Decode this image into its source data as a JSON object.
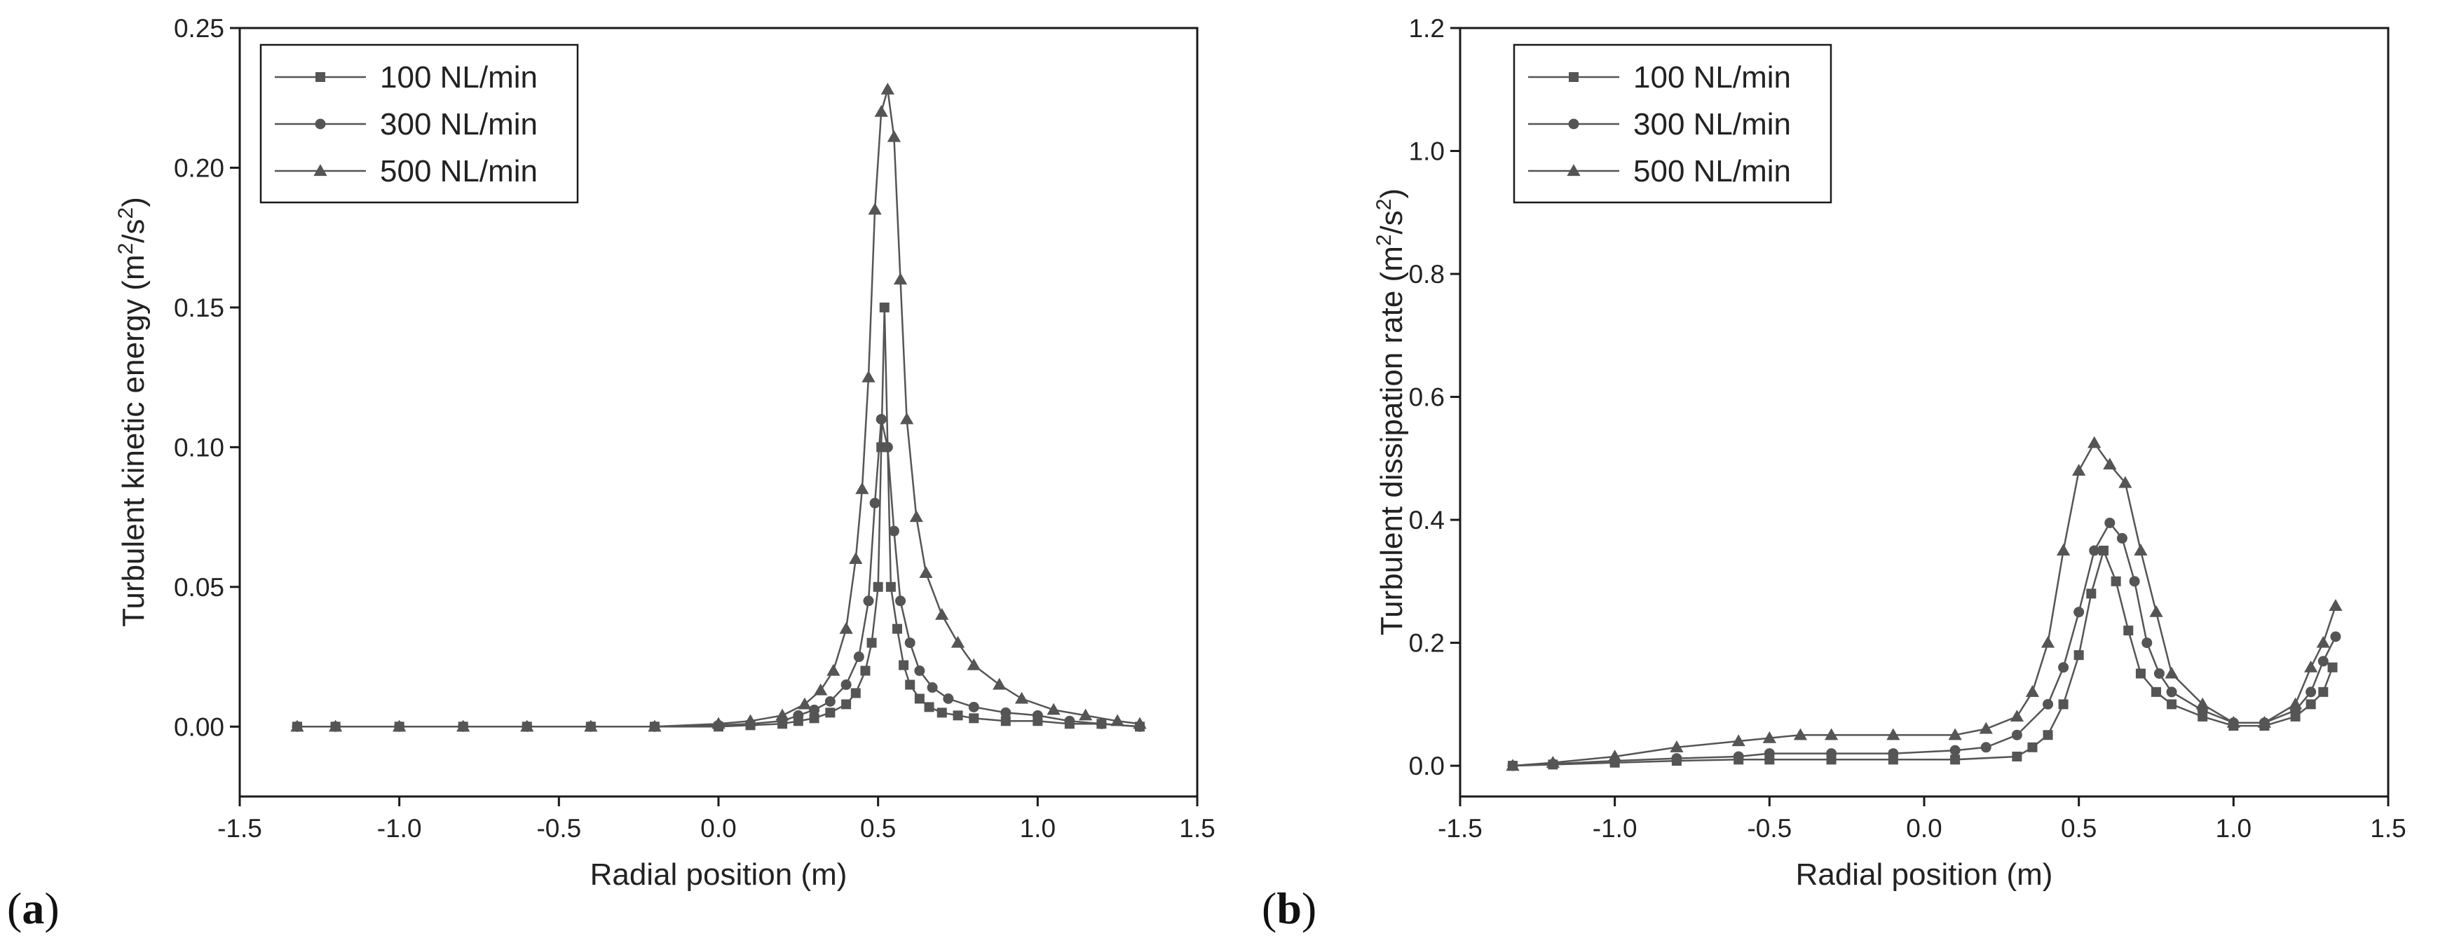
{
  "figure": {
    "label_prefix": "(",
    "label_suffix": ")"
  },
  "chart_data": [
    {
      "panel_label": "a",
      "type": "line",
      "title": "",
      "xlabel": "Radial position (m)",
      "ylabel_main": "Turbulent kinetic energy (m",
      "ylabel_sup1": "2",
      "ylabel_mid": "/s",
      "ylabel_sup2": "2",
      "ylabel_end": ")",
      "xlim": [
        -1.5,
        1.5
      ],
      "ylim": [
        -0.025,
        0.25
      ],
      "xticks": [
        -1.5,
        -1.0,
        -0.5,
        0.0,
        0.5,
        1.0,
        1.5
      ],
      "xtick_labels": [
        "-1.5",
        "-1.0",
        "-0.5",
        "0.0",
        "0.5",
        "1.0",
        "1.5"
      ],
      "yticks": [
        0.0,
        0.05,
        0.1,
        0.15,
        0.2,
        0.25
      ],
      "ytick_labels": [
        "0.00",
        "0.05",
        "0.10",
        "0.15",
        "0.20",
        "0.25"
      ],
      "legend_position": "top-left",
      "color": "#555555",
      "series": [
        {
          "name": "100 NL/min",
          "marker": "square",
          "x": [
            -1.32,
            -1.2,
            -1.0,
            -0.8,
            -0.6,
            -0.4,
            -0.2,
            0.0,
            0.1,
            0.2,
            0.25,
            0.3,
            0.35,
            0.4,
            0.43,
            0.46,
            0.48,
            0.5,
            0.51,
            0.52,
            0.54,
            0.56,
            0.58,
            0.6,
            0.63,
            0.66,
            0.7,
            0.75,
            0.8,
            0.9,
            1.0,
            1.1,
            1.2,
            1.32
          ],
          "y": [
            0.0,
            0.0,
            0.0,
            0.0,
            0.0,
            0.0,
            0.0,
            0.0,
            0.0005,
            0.001,
            0.002,
            0.003,
            0.005,
            0.008,
            0.012,
            0.02,
            0.03,
            0.05,
            0.1,
            0.15,
            0.05,
            0.035,
            0.022,
            0.015,
            0.01,
            0.007,
            0.005,
            0.004,
            0.003,
            0.002,
            0.002,
            0.001,
            0.001,
            0.0
          ]
        },
        {
          "name": "300 NL/min",
          "marker": "circle",
          "x": [
            -1.32,
            -1.2,
            -1.0,
            -0.8,
            -0.6,
            -0.4,
            -0.2,
            0.0,
            0.1,
            0.2,
            0.25,
            0.3,
            0.35,
            0.4,
            0.44,
            0.47,
            0.49,
            0.51,
            0.53,
            0.55,
            0.57,
            0.6,
            0.63,
            0.67,
            0.72,
            0.8,
            0.9,
            1.0,
            1.1,
            1.2,
            1.32
          ],
          "y": [
            0.0,
            0.0,
            0.0,
            0.0,
            0.0,
            0.0,
            0.0,
            0.0005,
            0.001,
            0.002,
            0.004,
            0.006,
            0.009,
            0.015,
            0.025,
            0.045,
            0.08,
            0.11,
            0.1,
            0.07,
            0.045,
            0.03,
            0.02,
            0.014,
            0.01,
            0.007,
            0.005,
            0.004,
            0.002,
            0.001,
            0.0
          ]
        },
        {
          "name": "500 NL/min",
          "marker": "triangle",
          "x": [
            -1.32,
            -1.2,
            -1.0,
            -0.8,
            -0.6,
            -0.4,
            -0.2,
            0.0,
            0.1,
            0.2,
            0.27,
            0.32,
            0.36,
            0.4,
            0.43,
            0.45,
            0.47,
            0.49,
            0.51,
            0.53,
            0.55,
            0.57,
            0.59,
            0.62,
            0.65,
            0.7,
            0.75,
            0.8,
            0.88,
            0.95,
            1.05,
            1.15,
            1.25,
            1.32
          ],
          "y": [
            0.0,
            0.0,
            0.0,
            0.0,
            0.0,
            0.0,
            0.0,
            0.001,
            0.002,
            0.004,
            0.008,
            0.013,
            0.02,
            0.035,
            0.06,
            0.085,
            0.125,
            0.185,
            0.22,
            0.228,
            0.211,
            0.16,
            0.11,
            0.075,
            0.055,
            0.04,
            0.03,
            0.022,
            0.015,
            0.01,
            0.006,
            0.004,
            0.002,
            0.001
          ]
        }
      ]
    },
    {
      "panel_label": "b",
      "type": "line",
      "title": "",
      "xlabel": "Radial position (m)",
      "ylabel_main": "Turbulent dissipation rate (m",
      "ylabel_sup1": "2",
      "ylabel_mid": "/s",
      "ylabel_sup2": "2",
      "ylabel_end": ")",
      "xlim": [
        -1.5,
        1.5
      ],
      "ylim": [
        -0.05,
        1.2
      ],
      "xticks": [
        -1.5,
        -1.0,
        -0.5,
        0.0,
        0.5,
        1.0,
        1.5
      ],
      "xtick_labels": [
        "-1.5",
        "-1.0",
        "-0.5",
        "0.0",
        "0.5",
        "1.0",
        "1.5"
      ],
      "yticks": [
        0.0,
        0.2,
        0.4,
        0.6,
        0.8,
        1.0,
        1.2
      ],
      "ytick_labels": [
        "0.0",
        "0.2",
        "0.4",
        "0.6",
        "0.8",
        "1.0",
        "1.2"
      ],
      "legend_position": "top-left",
      "color": "#555555",
      "series": [
        {
          "name": "100 NL/min",
          "marker": "square",
          "x": [
            -1.33,
            -1.2,
            -1.0,
            -0.8,
            -0.6,
            -0.5,
            -0.3,
            -0.1,
            0.1,
            0.3,
            0.35,
            0.4,
            0.45,
            0.5,
            0.54,
            0.58,
            0.62,
            0.66,
            0.7,
            0.75,
            0.8,
            0.9,
            1.0,
            1.1,
            1.2,
            1.25,
            1.29,
            1.32
          ],
          "y": [
            0.0,
            0.002,
            0.005,
            0.008,
            0.01,
            0.01,
            0.01,
            0.01,
            0.01,
            0.015,
            0.03,
            0.05,
            0.1,
            0.18,
            0.28,
            0.35,
            0.3,
            0.22,
            0.15,
            0.12,
            0.1,
            0.08,
            0.065,
            0.065,
            0.08,
            0.1,
            0.12,
            0.16
          ]
        },
        {
          "name": "300 NL/min",
          "marker": "circle",
          "x": [
            -1.33,
            -1.2,
            -1.0,
            -0.8,
            -0.6,
            -0.5,
            -0.3,
            -0.1,
            0.1,
            0.2,
            0.3,
            0.4,
            0.45,
            0.5,
            0.55,
            0.6,
            0.64,
            0.68,
            0.72,
            0.76,
            0.8,
            0.9,
            1.0,
            1.1,
            1.2,
            1.25,
            1.29,
            1.33
          ],
          "y": [
            0.0,
            0.003,
            0.008,
            0.012,
            0.015,
            0.02,
            0.02,
            0.02,
            0.025,
            0.03,
            0.05,
            0.1,
            0.16,
            0.25,
            0.35,
            0.395,
            0.37,
            0.3,
            0.2,
            0.15,
            0.12,
            0.09,
            0.07,
            0.07,
            0.09,
            0.12,
            0.17,
            0.21
          ]
        },
        {
          "name": "500 NL/min",
          "marker": "triangle",
          "x": [
            -1.33,
            -1.2,
            -1.0,
            -0.8,
            -0.6,
            -0.5,
            -0.4,
            -0.3,
            -0.1,
            0.1,
            0.2,
            0.3,
            0.35,
            0.4,
            0.45,
            0.5,
            0.55,
            0.6,
            0.65,
            0.7,
            0.75,
            0.8,
            0.9,
            1.0,
            1.1,
            1.2,
            1.25,
            1.29,
            1.33
          ],
          "y": [
            0.0,
            0.005,
            0.015,
            0.03,
            0.04,
            0.045,
            0.05,
            0.05,
            0.05,
            0.05,
            0.06,
            0.08,
            0.12,
            0.2,
            0.35,
            0.48,
            0.525,
            0.49,
            0.46,
            0.35,
            0.25,
            0.15,
            0.1,
            0.07,
            0.07,
            0.1,
            0.16,
            0.2,
            0.26
          ]
        }
      ]
    }
  ]
}
